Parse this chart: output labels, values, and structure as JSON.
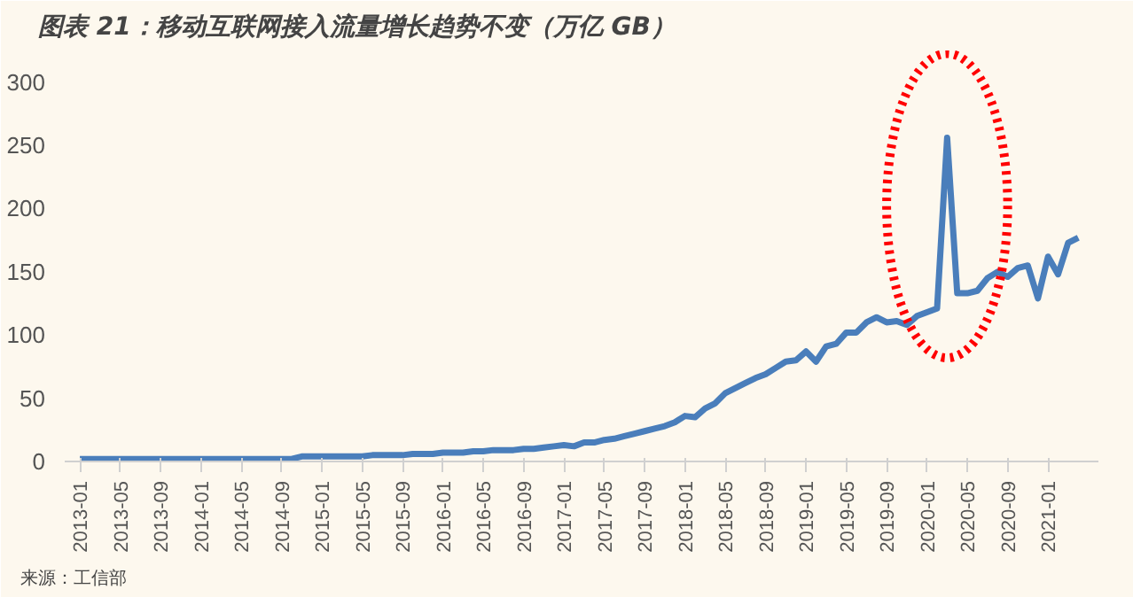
{
  "chart_data": {
    "type": "line",
    "title": "图表 21：移动互联网接入流量增长趋势不变（万亿 GB）",
    "annotations": [
      "来源：工信部"
    ],
    "categories": [
      "2013-01",
      null,
      null,
      null,
      "2013-05",
      null,
      null,
      null,
      "2013-09",
      null,
      null,
      null,
      "2014-01",
      null,
      null,
      null,
      "2014-05",
      null,
      null,
      null,
      "2014-09",
      null,
      null,
      null,
      "2015-01",
      null,
      null,
      null,
      "2015-05",
      null,
      null,
      null,
      "2015-09",
      null,
      null,
      null,
      "2016-01",
      null,
      null,
      null,
      "2016-05",
      null,
      null,
      null,
      "2016-09",
      null,
      null,
      null,
      "2017-01",
      null,
      null,
      null,
      "2017-05",
      null,
      null,
      null,
      "2017-09",
      null,
      null,
      null,
      "2018-01",
      null,
      null,
      null,
      "2018-05",
      null,
      null,
      null,
      "2018-09",
      null,
      null,
      null,
      "2019-01",
      null,
      null,
      null,
      "2019-05",
      null,
      null,
      null,
      "2019-09",
      null,
      null,
      null,
      "2020-01",
      null,
      null,
      null,
      "2020-05",
      null,
      null,
      null,
      "2020-09",
      null,
      null,
      null,
      "2021-01",
      null,
      null,
      null
    ],
    "series": [
      {
        "color": "#4a7ebb",
        "values": [
          2,
          2,
          2,
          2,
          2,
          2,
          2,
          2,
          2,
          2,
          2,
          2,
          2,
          2,
          2,
          2,
          2,
          2,
          2,
          2,
          2,
          2,
          4,
          4,
          4,
          4,
          4,
          4,
          4,
          5,
          5,
          5,
          5,
          6,
          6,
          6,
          7,
          7,
          7,
          8,
          8,
          9,
          9,
          9,
          10,
          10,
          11,
          12,
          13,
          12,
          15,
          15,
          17,
          18,
          20,
          22,
          24,
          26,
          28,
          31,
          36,
          35,
          42,
          46,
          54,
          58,
          62,
          66,
          69,
          74,
          79,
          80,
          87,
          79,
          91,
          93,
          102,
          102,
          110,
          114,
          110,
          111,
          108,
          115,
          118,
          121,
          256,
          133,
          133,
          135,
          145,
          150,
          146,
          153,
          155,
          129,
          162,
          148,
          173,
          177
        ]
      }
    ],
    "ylim": [
      0,
      325
    ],
    "yticks": [
      0,
      50,
      100,
      150,
      200,
      250,
      300
    ],
    "grid": false,
    "marker": "none",
    "line_style": "solid"
  }
}
